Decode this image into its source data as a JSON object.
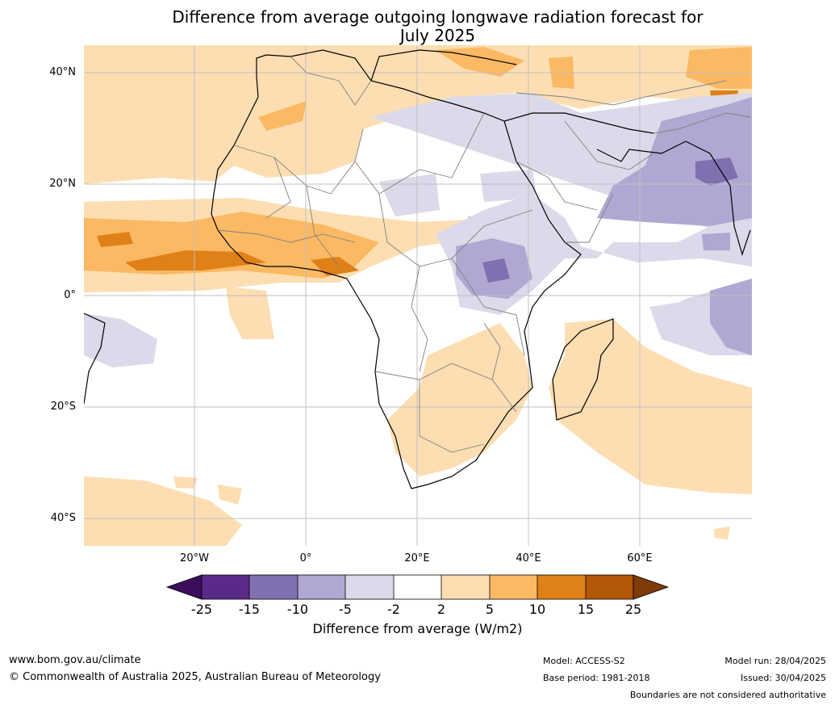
{
  "title_line1": "Difference from average outgoing longwave radiation forecast for",
  "title_line2": "July 2025",
  "lat_labels": [
    "40°N",
    "20°N",
    "0°",
    "20°S",
    "40°S"
  ],
  "lon_labels": [
    "20°W",
    "0°",
    "20°E",
    "40°E",
    "60°E"
  ],
  "colorbar": {
    "ticks": [
      "-25",
      "-15",
      "-10",
      "-5",
      "-2",
      "2",
      "5",
      "10",
      "15",
      "25"
    ],
    "colors": [
      "#3a0e5b",
      "#5a2a8a",
      "#8070b0",
      "#b0a8d2",
      "#dadaea",
      "#ffffff",
      "#fddeb2",
      "#fbb964",
      "#e08018",
      "#b35806",
      "#7f3b08"
    ],
    "title": "Difference from average (W/m2)"
  },
  "footer": {
    "website": "www.bom.gov.au/climate",
    "copyright": "© Commonwealth of Australia 2025, Australian Bureau of Meteorology",
    "model": "Model: ACCESS-S2",
    "base_period": "Base period: 1981-2018",
    "model_run": "Model run: 28/04/2025",
    "issued": "Issued: 30/04/2025",
    "disclaimer": "Boundaries are not considered authoritative"
  }
}
